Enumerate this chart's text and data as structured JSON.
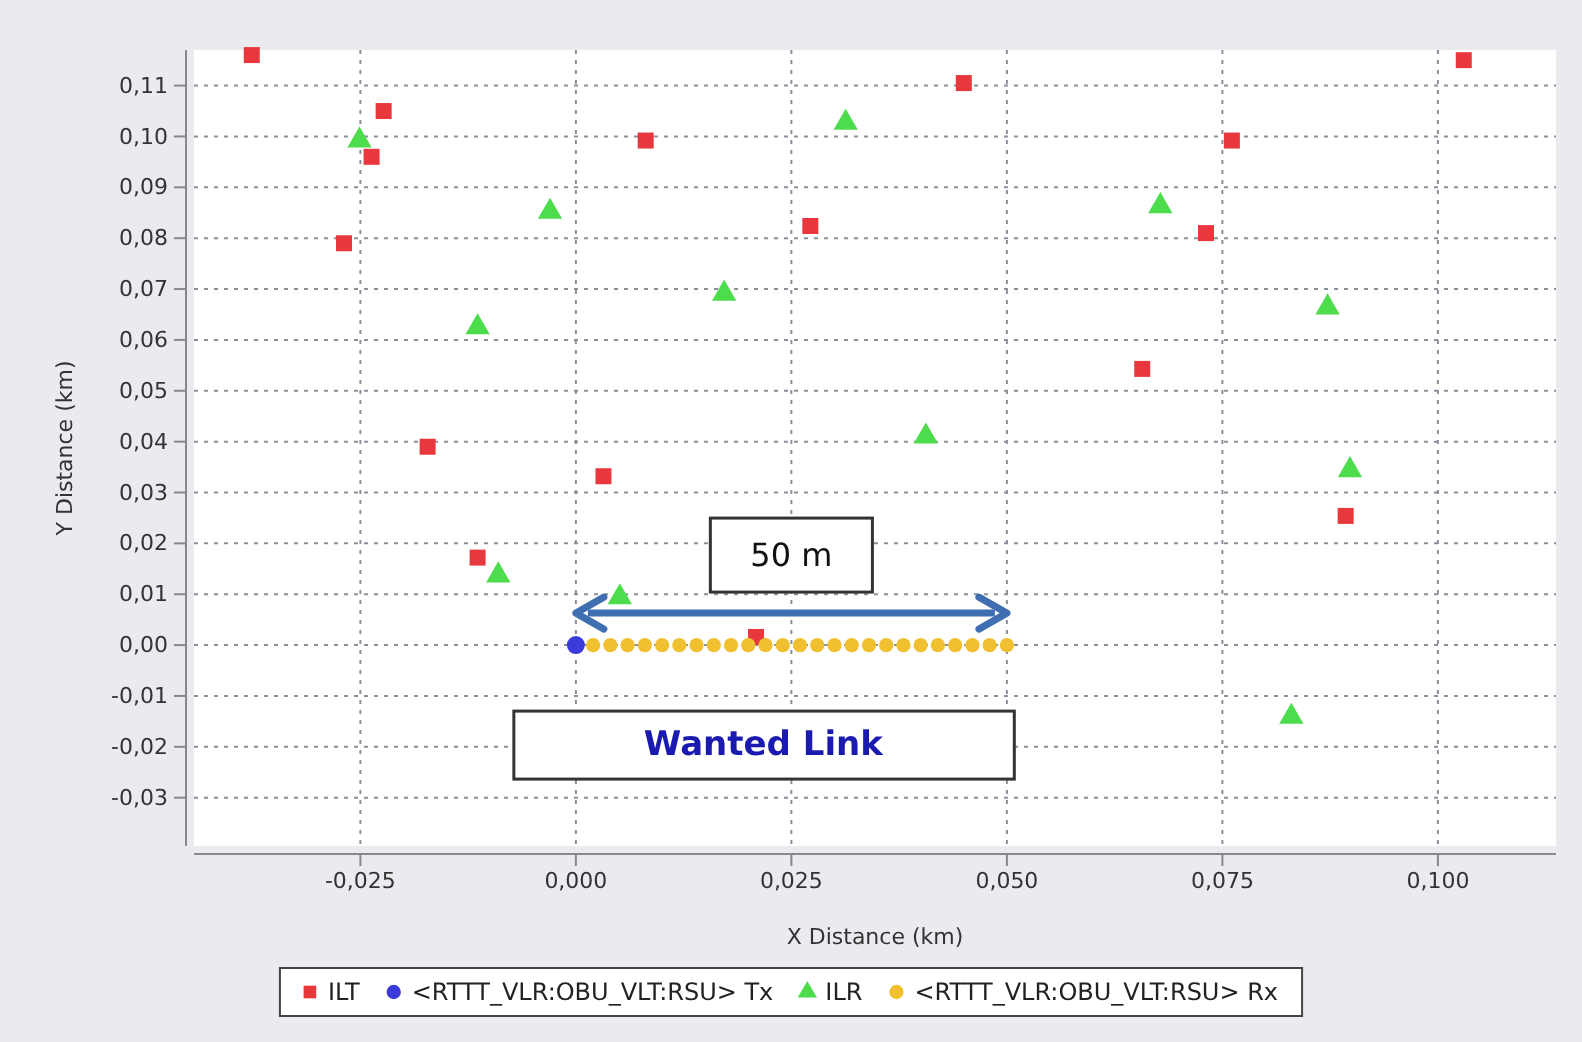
{
  "chart_data": {
    "type": "scatter",
    "xlabel": "X Distance (km)",
    "ylabel": "Y Distance (km)",
    "xlim": [
      -0.0443,
      0.1137
    ],
    "ylim": [
      -0.0395,
      0.117
    ],
    "xticks": [
      {
        "value": -0.025,
        "label": "-0,025"
      },
      {
        "value": 0,
        "label": "0,000"
      },
      {
        "value": 0.025,
        "label": "0,025"
      },
      {
        "value": 0.05,
        "label": "0,050"
      },
      {
        "value": 0.075,
        "label": "0,075"
      },
      {
        "value": 0.1,
        "label": "0,100"
      }
    ],
    "yticks": [
      {
        "value": -0.03,
        "label": "-0,03"
      },
      {
        "value": -0.02,
        "label": "-0,02"
      },
      {
        "value": -0.01,
        "label": "-0,01"
      },
      {
        "value": 0,
        "label": "0,00"
      },
      {
        "value": 0.01,
        "label": "0,01"
      },
      {
        "value": 0.02,
        "label": "0,02"
      },
      {
        "value": 0.03,
        "label": "0,03"
      },
      {
        "value": 0.04,
        "label": "0,04"
      },
      {
        "value": 0.05,
        "label": "0,05"
      },
      {
        "value": 0.06,
        "label": "0,06"
      },
      {
        "value": 0.07,
        "label": "0,07"
      },
      {
        "value": 0.08,
        "label": "0,08"
      },
      {
        "value": 0.09,
        "label": "0,09"
      },
      {
        "value": 0.1,
        "label": "0,10"
      },
      {
        "value": 0.11,
        "label": "0,11"
      }
    ],
    "grid": true,
    "legend": "bottom",
    "line_style": "dotted",
    "series": [
      {
        "name": "ILT",
        "color": "#e8383d",
        "marker": "square",
        "x": [
          -0.0376,
          -0.0223,
          -0.0237,
          -0.0269,
          -0.0172,
          -0.0114,
          0.0032,
          0.0081,
          0.0272,
          0.045,
          0.0761,
          0.0731,
          0.0657,
          0.103,
          0.0893,
          0.0209
        ],
        "values": [
          0.116,
          0.105,
          0.096,
          0.079,
          0.039,
          0.0172,
          0.0332,
          0.0992,
          0.0824,
          0.1105,
          0.0992,
          0.081,
          0.0543,
          0.115,
          0.0254,
          0.0016
        ]
      },
      {
        "name": "<RTTT_VLR:OBU_VLT:RSU> Tx",
        "color": "#3b3bdc",
        "marker": "circle",
        "x": [
          0
        ],
        "values": [
          0
        ]
      },
      {
        "name": "ILR",
        "color": "#4cdc4c",
        "marker": "triangle",
        "x": [
          -0.0251,
          -0.003,
          -0.0114,
          0.0172,
          0.0313,
          0.0678,
          0.0872,
          0.0406,
          0.0898,
          -0.009,
          0.0051,
          0.083
        ],
        "values": [
          0.0992,
          0.0852,
          0.0625,
          0.0691,
          0.1027,
          0.0863,
          0.0664,
          0.041,
          0.0344,
          0.0137,
          0.0094,
          -0.0141
        ]
      },
      {
        "name": "<RTTT_VLR:OBU_VLT:RSU> Rx",
        "color": "#f0c030",
        "marker": "circle",
        "x": [
          0.002,
          0.004,
          0.006,
          0.008,
          0.01,
          0.012,
          0.014,
          0.016,
          0.018,
          0.02,
          0.022,
          0.024,
          0.026,
          0.028,
          0.03,
          0.032,
          0.034,
          0.036,
          0.038,
          0.04,
          0.042,
          0.044,
          0.046,
          0.048,
          0.05
        ],
        "values": [
          0,
          0,
          0,
          0,
          0,
          0,
          0,
          0,
          0,
          0,
          0,
          0,
          0,
          0,
          0,
          0,
          0,
          0,
          0,
          0,
          0,
          0,
          0,
          0,
          0
        ]
      }
    ],
    "annotations": [
      "50 m",
      "Wanted Link"
    ]
  }
}
